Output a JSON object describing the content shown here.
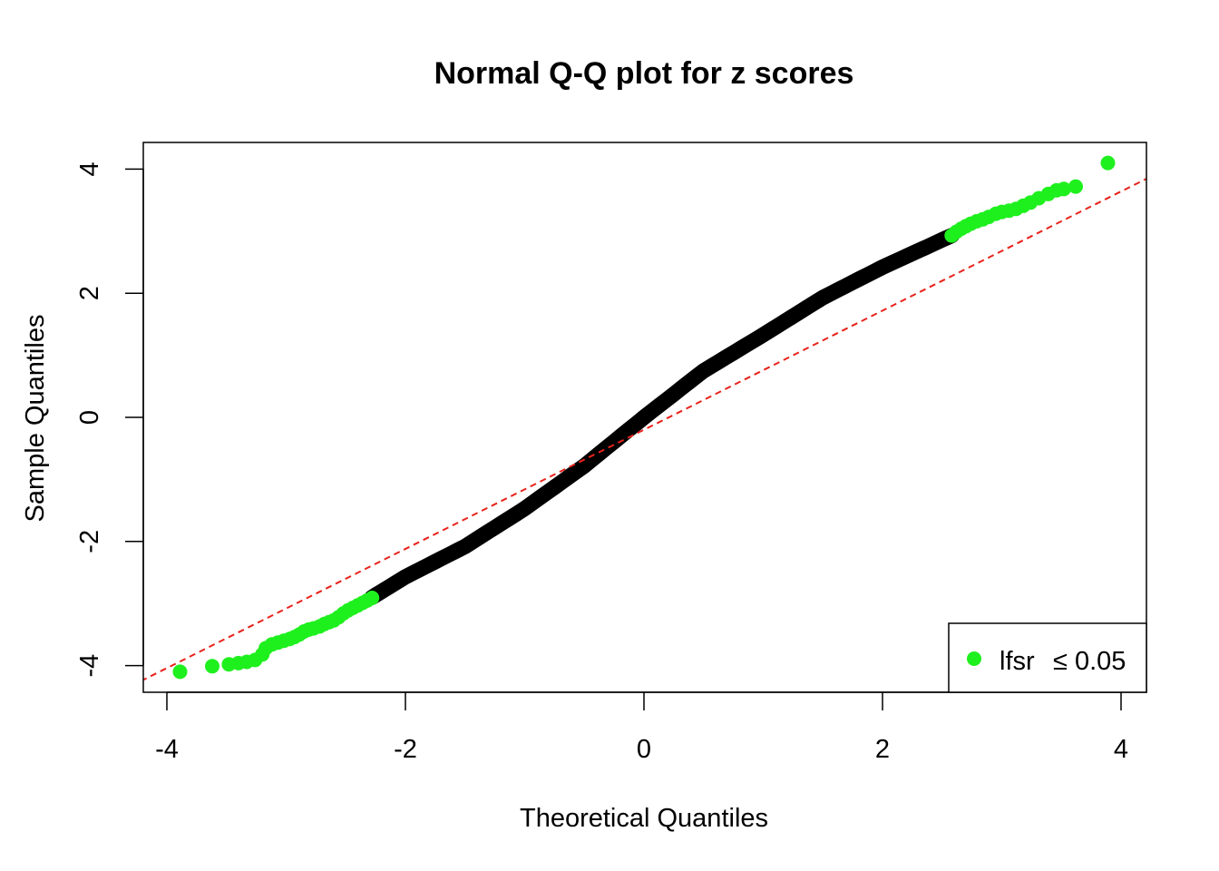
{
  "chart_data": {
    "type": "scatter",
    "title": "Normal Q-Q plot for z scores",
    "xlabel": "Theoretical Quantiles",
    "ylabel": "Sample Quantiles",
    "xlim": [
      -4.2,
      4.2
    ],
    "ylim": [
      -4.45,
      4.45
    ],
    "xticks": [
      -4,
      -2,
      0,
      2,
      4
    ],
    "yticks": [
      -4,
      -2,
      0,
      2,
      4
    ],
    "xtick_labels": [
      "-4",
      "-2",
      "0",
      "2",
      "4"
    ],
    "ytick_labels": [
      "-4",
      "-2",
      "0",
      "2",
      "4"
    ],
    "grid": false,
    "reference_line": {
      "style": "dashed",
      "color": "#e8221b",
      "slope": 0.96,
      "intercept": -0.2
    },
    "series": [
      {
        "name": "",
        "color": "#000000",
        "curve": {
          "x": [
            -2.28,
            -2.0,
            -1.5,
            -1.0,
            -0.5,
            0.0,
            0.5,
            1.0,
            1.5,
            2.0,
            2.58
          ],
          "y": [
            -2.9,
            -2.57,
            -2.08,
            -1.47,
            -0.78,
            0.0,
            0.75,
            1.33,
            1.93,
            2.42,
            2.93
          ]
        },
        "points": []
      },
      {
        "name": "lfsr ≤ 0.05",
        "color": "#1ef01e",
        "points": [
          [
            -3.89,
            -4.1
          ],
          [
            -3.62,
            -4.01
          ],
          [
            -3.48,
            -3.98
          ],
          [
            -3.4,
            -3.96
          ],
          [
            -3.33,
            -3.94
          ],
          [
            -3.26,
            -3.91
          ],
          [
            -3.2,
            -3.82
          ],
          [
            -3.17,
            -3.72
          ],
          [
            -3.12,
            -3.66
          ],
          [
            -3.07,
            -3.63
          ],
          [
            -3.02,
            -3.6
          ],
          [
            -2.97,
            -3.57
          ],
          [
            -2.93,
            -3.54
          ],
          [
            -2.89,
            -3.5
          ],
          [
            -2.85,
            -3.45
          ],
          [
            -2.81,
            -3.42
          ],
          [
            -2.77,
            -3.4
          ],
          [
            -2.72,
            -3.37
          ],
          [
            -2.68,
            -3.33
          ],
          [
            -2.64,
            -3.3
          ],
          [
            -2.6,
            -3.27
          ],
          [
            -2.56,
            -3.22
          ],
          [
            -2.52,
            -3.16
          ],
          [
            -2.48,
            -3.11
          ],
          [
            -2.44,
            -3.07
          ],
          [
            -2.4,
            -3.03
          ],
          [
            -2.36,
            -2.99
          ],
          [
            -2.32,
            -2.95
          ],
          [
            -2.28,
            -2.91
          ],
          [
            2.58,
            2.93
          ],
          [
            2.62,
            2.99
          ],
          [
            2.66,
            3.04
          ],
          [
            2.7,
            3.08
          ],
          [
            2.74,
            3.12
          ],
          [
            2.79,
            3.16
          ],
          [
            2.84,
            3.19
          ],
          [
            2.89,
            3.23
          ],
          [
            2.95,
            3.28
          ],
          [
            3.0,
            3.31
          ],
          [
            3.06,
            3.33
          ],
          [
            3.12,
            3.36
          ],
          [
            3.18,
            3.41
          ],
          [
            3.24,
            3.46
          ],
          [
            3.31,
            3.53
          ],
          [
            3.39,
            3.6
          ],
          [
            3.46,
            3.66
          ],
          [
            3.52,
            3.68
          ],
          [
            3.62,
            3.72
          ],
          [
            3.89,
            4.1
          ]
        ]
      }
    ],
    "legend": {
      "position": "bottom-right",
      "label_prefix": "lfsr",
      "label_value": "≤ 0.05"
    }
  }
}
